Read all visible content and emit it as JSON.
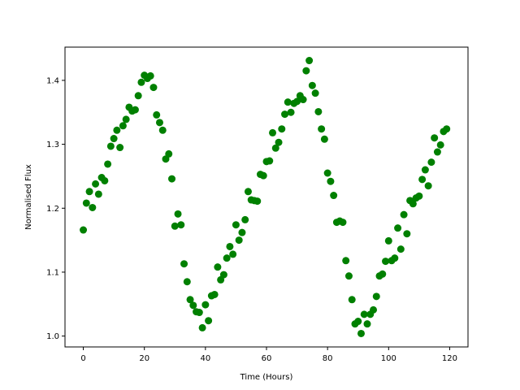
{
  "chart_data": {
    "type": "scatter",
    "title": "",
    "xlabel": "Time (Hours)",
    "ylabel": "Normalised Flux",
    "xlim": [
      -6,
      126
    ],
    "ylim": [
      0.983,
      1.452
    ],
    "xticks": [
      0,
      20,
      40,
      60,
      80,
      100,
      120
    ],
    "yticks": [
      1.0,
      1.1,
      1.2,
      1.3,
      1.4
    ],
    "xtick_labels": [
      "0",
      "20",
      "40",
      "60",
      "80",
      "100",
      "120"
    ],
    "ytick_labels": [
      "1.0",
      "1.1",
      "1.2",
      "1.3",
      "1.4"
    ],
    "grid": false,
    "marker_color": "#008000",
    "x": [
      0,
      1,
      2,
      3,
      4,
      5,
      6,
      7,
      8,
      9,
      10,
      11,
      12,
      13,
      14,
      15,
      16,
      17,
      18,
      19,
      20,
      21,
      22,
      23,
      24,
      25,
      26,
      27,
      28,
      29,
      30,
      31,
      32,
      33,
      34,
      35,
      36,
      37,
      38,
      39,
      40,
      41,
      42,
      43,
      44,
      45,
      46,
      47,
      48,
      49,
      50,
      51,
      52,
      53,
      54,
      55,
      56,
      57,
      58,
      59,
      60,
      61,
      62,
      63,
      64,
      65,
      66,
      67,
      68,
      69,
      70,
      71,
      72,
      73,
      74,
      75,
      76,
      77,
      78,
      79,
      80,
      81,
      82,
      83,
      84,
      85,
      86,
      87,
      88,
      89,
      90,
      91,
      92,
      93,
      94,
      95,
      96,
      97,
      98,
      99,
      100,
      101,
      102,
      103,
      104,
      105,
      106,
      107,
      108,
      109,
      110,
      111,
      112,
      113,
      114,
      115,
      116,
      117,
      118,
      119
    ],
    "y": [
      1.166,
      1.208,
      1.226,
      1.201,
      1.238,
      1.222,
      1.248,
      1.243,
      1.269,
      1.297,
      1.309,
      1.322,
      1.295,
      1.329,
      1.339,
      1.358,
      1.352,
      1.354,
      1.376,
      1.397,
      1.408,
      1.403,
      1.407,
      1.389,
      1.346,
      1.334,
      1.322,
      1.277,
      1.285,
      1.246,
      1.172,
      1.191,
      1.174,
      1.113,
      1.085,
      1.057,
      1.048,
      1.038,
      1.037,
      1.013,
      1.049,
      1.024,
      1.063,
      1.065,
      1.108,
      1.088,
      1.096,
      1.122,
      1.14,
      1.128,
      1.174,
      1.15,
      1.162,
      1.182,
      1.226,
      1.213,
      1.212,
      1.211,
      1.253,
      1.251,
      1.273,
      1.274,
      1.318,
      1.294,
      1.303,
      1.324,
      1.347,
      1.366,
      1.35,
      1.364,
      1.367,
      1.376,
      1.37,
      1.415,
      1.431,
      1.392,
      1.38,
      1.351,
      1.324,
      1.308,
      1.255,
      1.242,
      1.22,
      1.178,
      1.18,
      1.178,
      1.118,
      1.094,
      1.057,
      1.019,
      1.023,
      1.004,
      1.034,
      1.019,
      1.034,
      1.041,
      1.062,
      1.094,
      1.097,
      1.117,
      1.149,
      1.118,
      1.122,
      1.169,
      1.136,
      1.19,
      1.16,
      1.212,
      1.207,
      1.216,
      1.219,
      1.245,
      1.26,
      1.235,
      1.272,
      1.31,
      1.288,
      1.299,
      1.32,
      1.324
    ]
  }
}
